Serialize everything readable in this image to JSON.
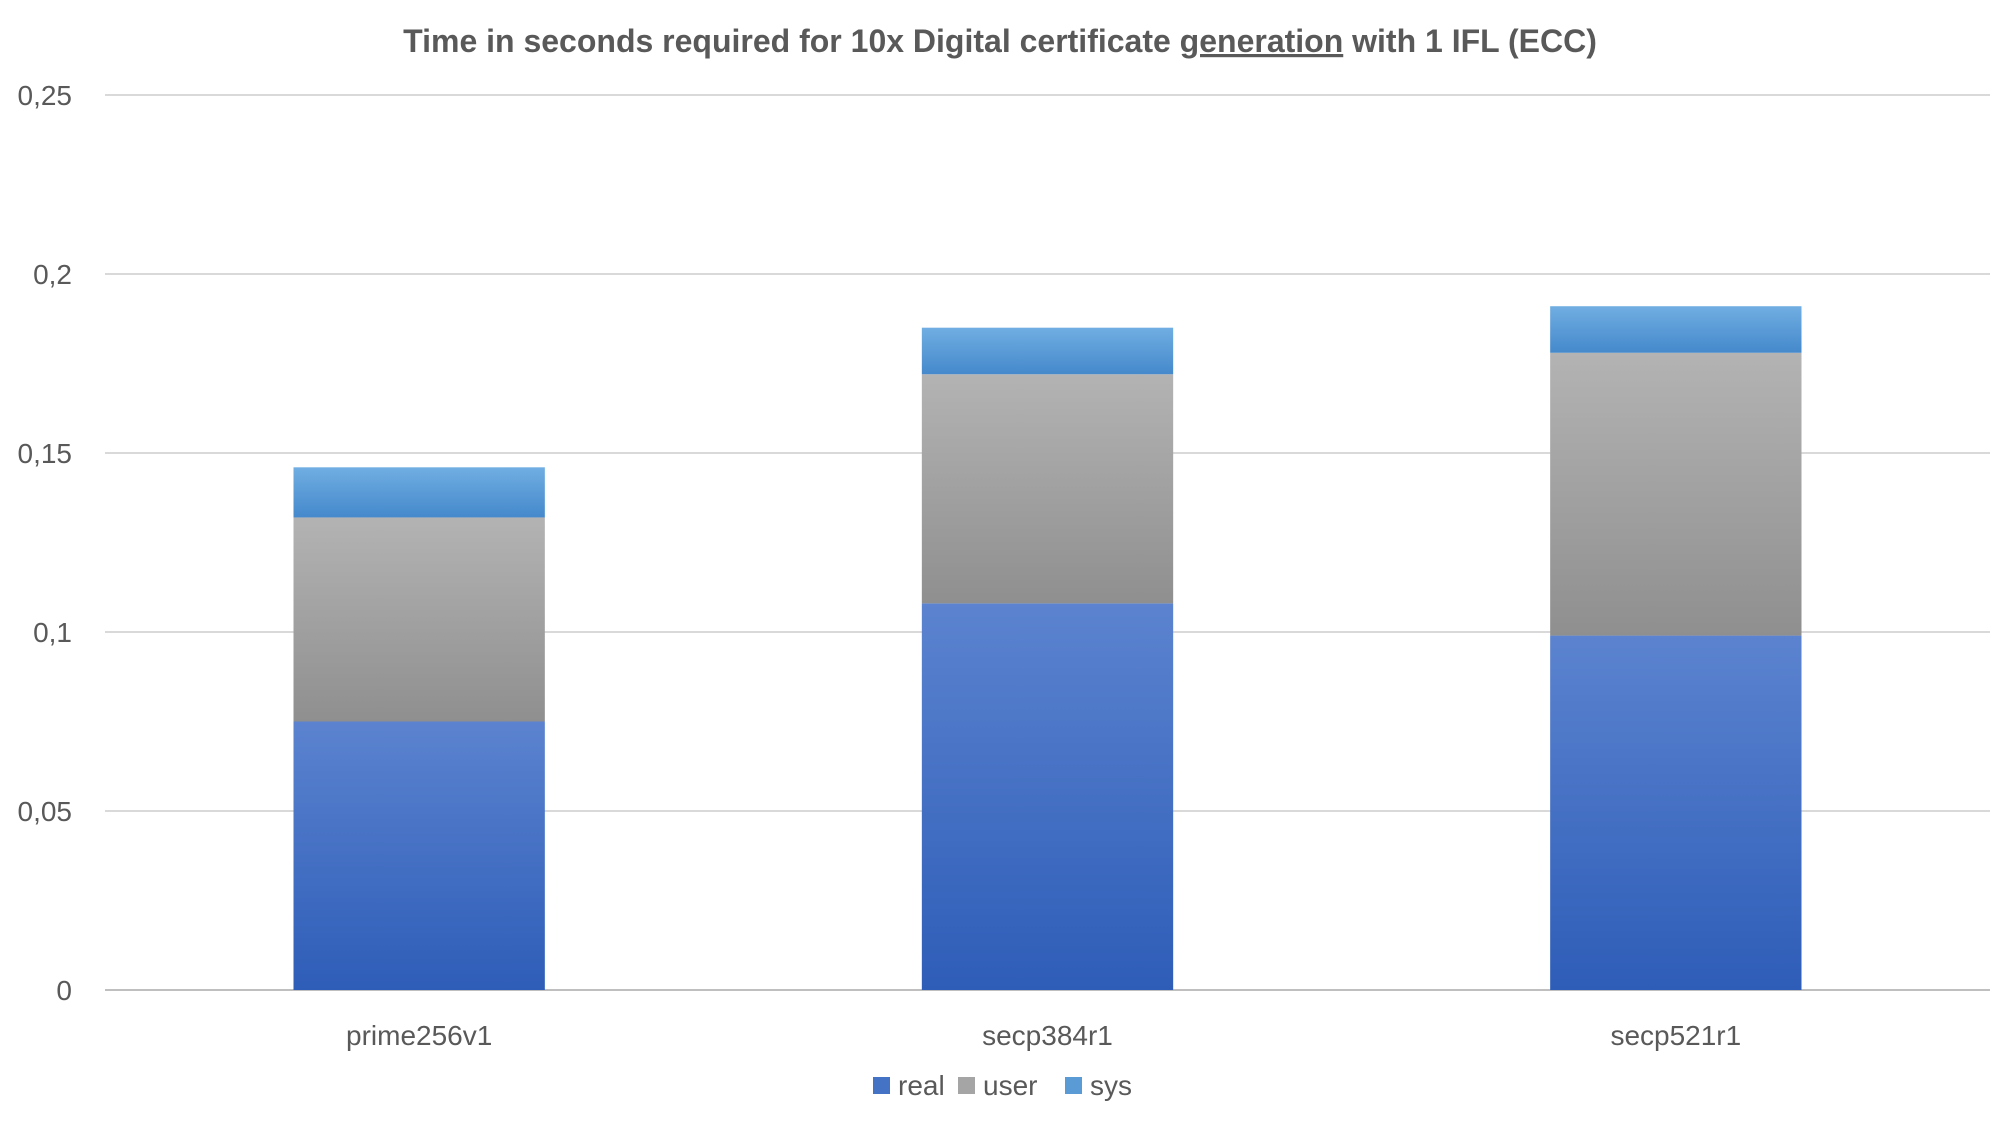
{
  "chart_data": {
    "type": "bar",
    "stacked": true,
    "title_parts": [
      "Time in seconds required for 10x Digital certificate ",
      "generation",
      " with 1 IFL (ECC)"
    ],
    "categories": [
      "prime256v1",
      "secp384r1",
      "secp521r1"
    ],
    "series": [
      {
        "name": "real",
        "values": [
          0.075,
          0.108,
          0.099
        ],
        "color": "#4472C4"
      },
      {
        "name": "user",
        "values": [
          0.057,
          0.064,
          0.079
        ],
        "color": "#A5A5A5"
      },
      {
        "name": "sys",
        "values": [
          0.014,
          0.013,
          0.013
        ],
        "color": "#5B9BD5"
      }
    ],
    "ylim": [
      0,
      0.25
    ],
    "yticks": [
      0,
      0.05,
      0.1,
      0.15,
      0.2,
      0.25
    ],
    "ytick_labels": [
      "0",
      "0,05",
      "0,1",
      "0,15",
      "0,2",
      "0,25"
    ],
    "xlabel": "",
    "ylabel": "",
    "grid": true,
    "legend_position": "bottom"
  }
}
